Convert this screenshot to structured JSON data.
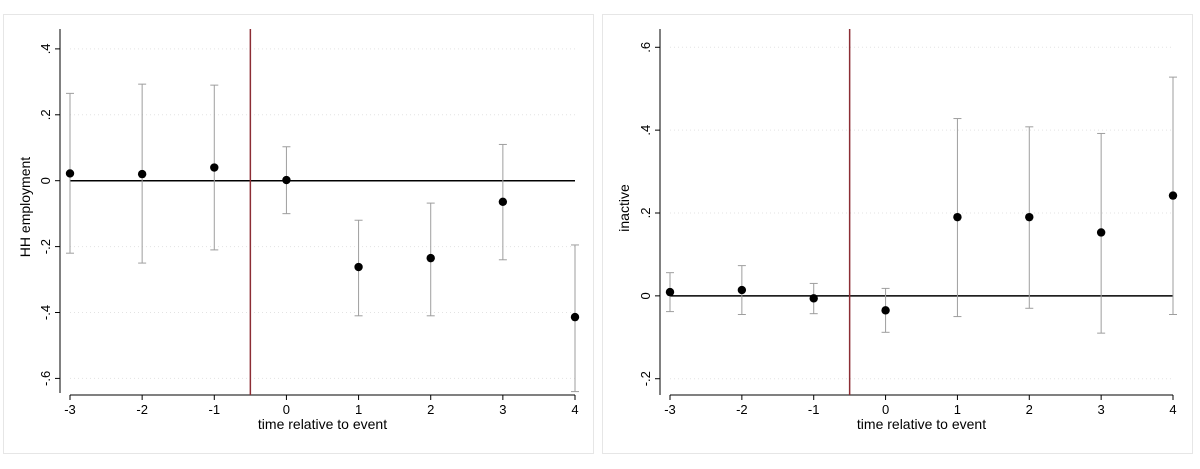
{
  "chart_data": [
    {
      "type": "scatter",
      "title": "",
      "xlabel": "time relative to event",
      "ylabel": "HH employment",
      "x": [
        -3,
        -2,
        -1,
        0,
        1,
        2,
        3,
        4
      ],
      "x_tick_labels": [
        "-3",
        "-2",
        "-1",
        "0",
        "1",
        "2",
        "3",
        "4"
      ],
      "y_ticks": [
        -0.6,
        -0.4,
        -0.2,
        0,
        0.2,
        0.4
      ],
      "y_tick_labels": [
        "-.6",
        "-.4",
        "-.2",
        "0",
        ".2",
        ".4"
      ],
      "xlim": [
        -3,
        4
      ],
      "ylim": [
        -0.62,
        0.43
      ],
      "grid": true,
      "event_line_x": -0.5,
      "reference_line_y": 0,
      "series": [
        {
          "values": [
            0.022,
            0.02,
            0.04,
            0.002,
            -0.262,
            -0.235,
            -0.064,
            -0.414
          ],
          "ci_lower": [
            -0.22,
            -0.25,
            -0.21,
            -0.1,
            -0.41,
            -0.41,
            -0.24,
            -0.64
          ],
          "ci_upper": [
            0.265,
            0.293,
            0.29,
            0.103,
            -0.12,
            -0.068,
            0.11,
            -0.195
          ]
        }
      ],
      "colors": {
        "points": "#000000",
        "ci": "#9e9e9e",
        "event_line": "#8c2d34",
        "zero_line": "#000000",
        "grid": "#e3e3e3"
      }
    },
    {
      "type": "scatter",
      "title": "",
      "xlabel": "time relative to event",
      "ylabel": "inactive",
      "x": [
        -3,
        -2,
        -1,
        0,
        1,
        2,
        3,
        4
      ],
      "x_tick_labels": [
        "-3",
        "-2",
        "-1",
        "0",
        "1",
        "2",
        "3",
        "4"
      ],
      "y_ticks": [
        -0.2,
        0,
        0.2,
        0.4,
        0.6
      ],
      "y_tick_labels": [
        "-.2",
        "0",
        ".2",
        ".4",
        ".6"
      ],
      "xlim": [
        -3,
        4
      ],
      "ylim": [
        -0.22,
        0.62
      ],
      "grid": true,
      "event_line_x": -0.5,
      "reference_line_y": 0,
      "series": [
        {
          "values": [
            0.009,
            0.014,
            -0.006,
            -0.035,
            0.19,
            0.19,
            0.153,
            0.242
          ],
          "ci_lower": [
            -0.038,
            -0.045,
            -0.043,
            -0.088,
            -0.05,
            -0.03,
            -0.09,
            -0.045
          ],
          "ci_upper": [
            0.056,
            0.073,
            0.03,
            0.018,
            0.428,
            0.408,
            0.392,
            0.528
          ]
        }
      ],
      "colors": {
        "points": "#000000",
        "ci": "#9e9e9e",
        "event_line": "#8c2d34",
        "zero_line": "#000000",
        "grid": "#e3e3e3"
      }
    }
  ]
}
